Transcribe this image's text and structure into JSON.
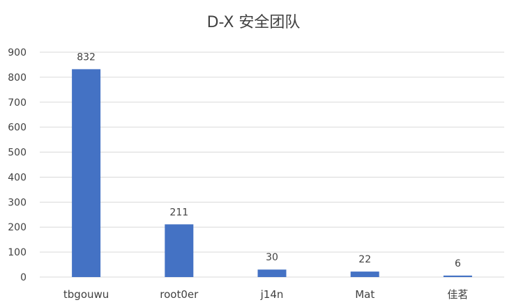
{
  "chart_data": {
    "type": "bar",
    "title": "D-X 安全团队",
    "xlabel": "",
    "ylabel": "",
    "categories": [
      "tbgouwu",
      "root0er",
      "j14n",
      "Mat",
      "佳茗"
    ],
    "values": [
      832,
      211,
      30,
      22,
      6
    ],
    "ylim": [
      0,
      900
    ],
    "yticks": [
      0,
      100,
      200,
      300,
      400,
      500,
      600,
      700,
      800,
      900
    ],
    "grid": true,
    "legend": "none",
    "data_labels": true,
    "colors": {
      "bar": "#4472C4",
      "grid": "#D9D9D9",
      "axis_text": "#404040",
      "label_text": "#404040"
    }
  }
}
